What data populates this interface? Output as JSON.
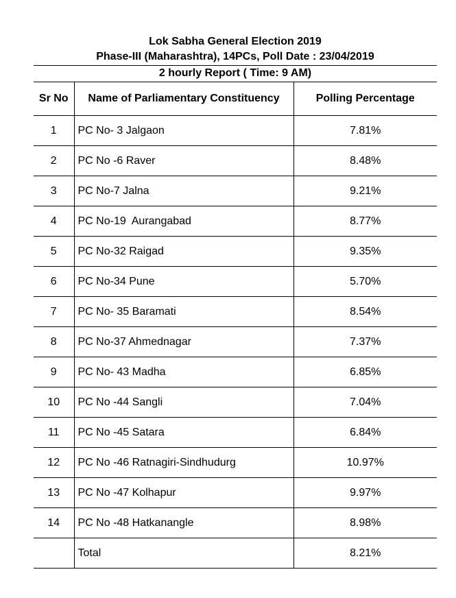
{
  "header": {
    "line1": "Lok Sabha General Election 2019",
    "line2": "Phase-III (Maharashtra), 14PCs, Poll Date : 23/04/2019",
    "line3": "2 hourly Report ( Time: 9 AM)"
  },
  "table": {
    "columns": {
      "sr_no": "Sr No",
      "constituency": "Name of Parliamentary Constituency",
      "polling_percentage": "Polling Percentage"
    },
    "rows": [
      {
        "sr": "1",
        "name": "PC No- 3 Jalgaon",
        "pct": "7.81%"
      },
      {
        "sr": "2",
        "name": "PC No -6 Raver",
        "pct": "8.48%"
      },
      {
        "sr": "3",
        "name": "PC No-7 Jalna",
        "pct": "9.21%"
      },
      {
        "sr": "4",
        "name": "PC No-19  Aurangabad",
        "pct": "8.77%"
      },
      {
        "sr": "5",
        "name": "PC No-32 Raigad",
        "pct": "9.35%"
      },
      {
        "sr": "6",
        "name": "PC No-34 Pune",
        "pct": "5.70%"
      },
      {
        "sr": "7",
        "name": "PC No- 35 Baramati",
        "pct": "8.54%"
      },
      {
        "sr": "8",
        "name": "PC No-37 Ahmednagar",
        "pct": "7.37%"
      },
      {
        "sr": "9",
        "name": "PC No- 43 Madha",
        "pct": "6.85%"
      },
      {
        "sr": "10",
        "name": "PC No -44 Sangli",
        "pct": "7.04%"
      },
      {
        "sr": "11",
        "name": "PC No -45 Satara",
        "pct": "6.84%"
      },
      {
        "sr": "12",
        "name": "PC No -46 Ratnagiri-Sindhudurg",
        "pct": "10.97%"
      },
      {
        "sr": "13",
        "name": "PC No -47 Kolhapur",
        "pct": "9.97%"
      },
      {
        "sr": "14",
        "name": "PC No -48 Hatkanangle",
        "pct": "8.98%"
      }
    ],
    "total": {
      "sr": "",
      "name": "Total",
      "pct": "8.21%"
    }
  }
}
